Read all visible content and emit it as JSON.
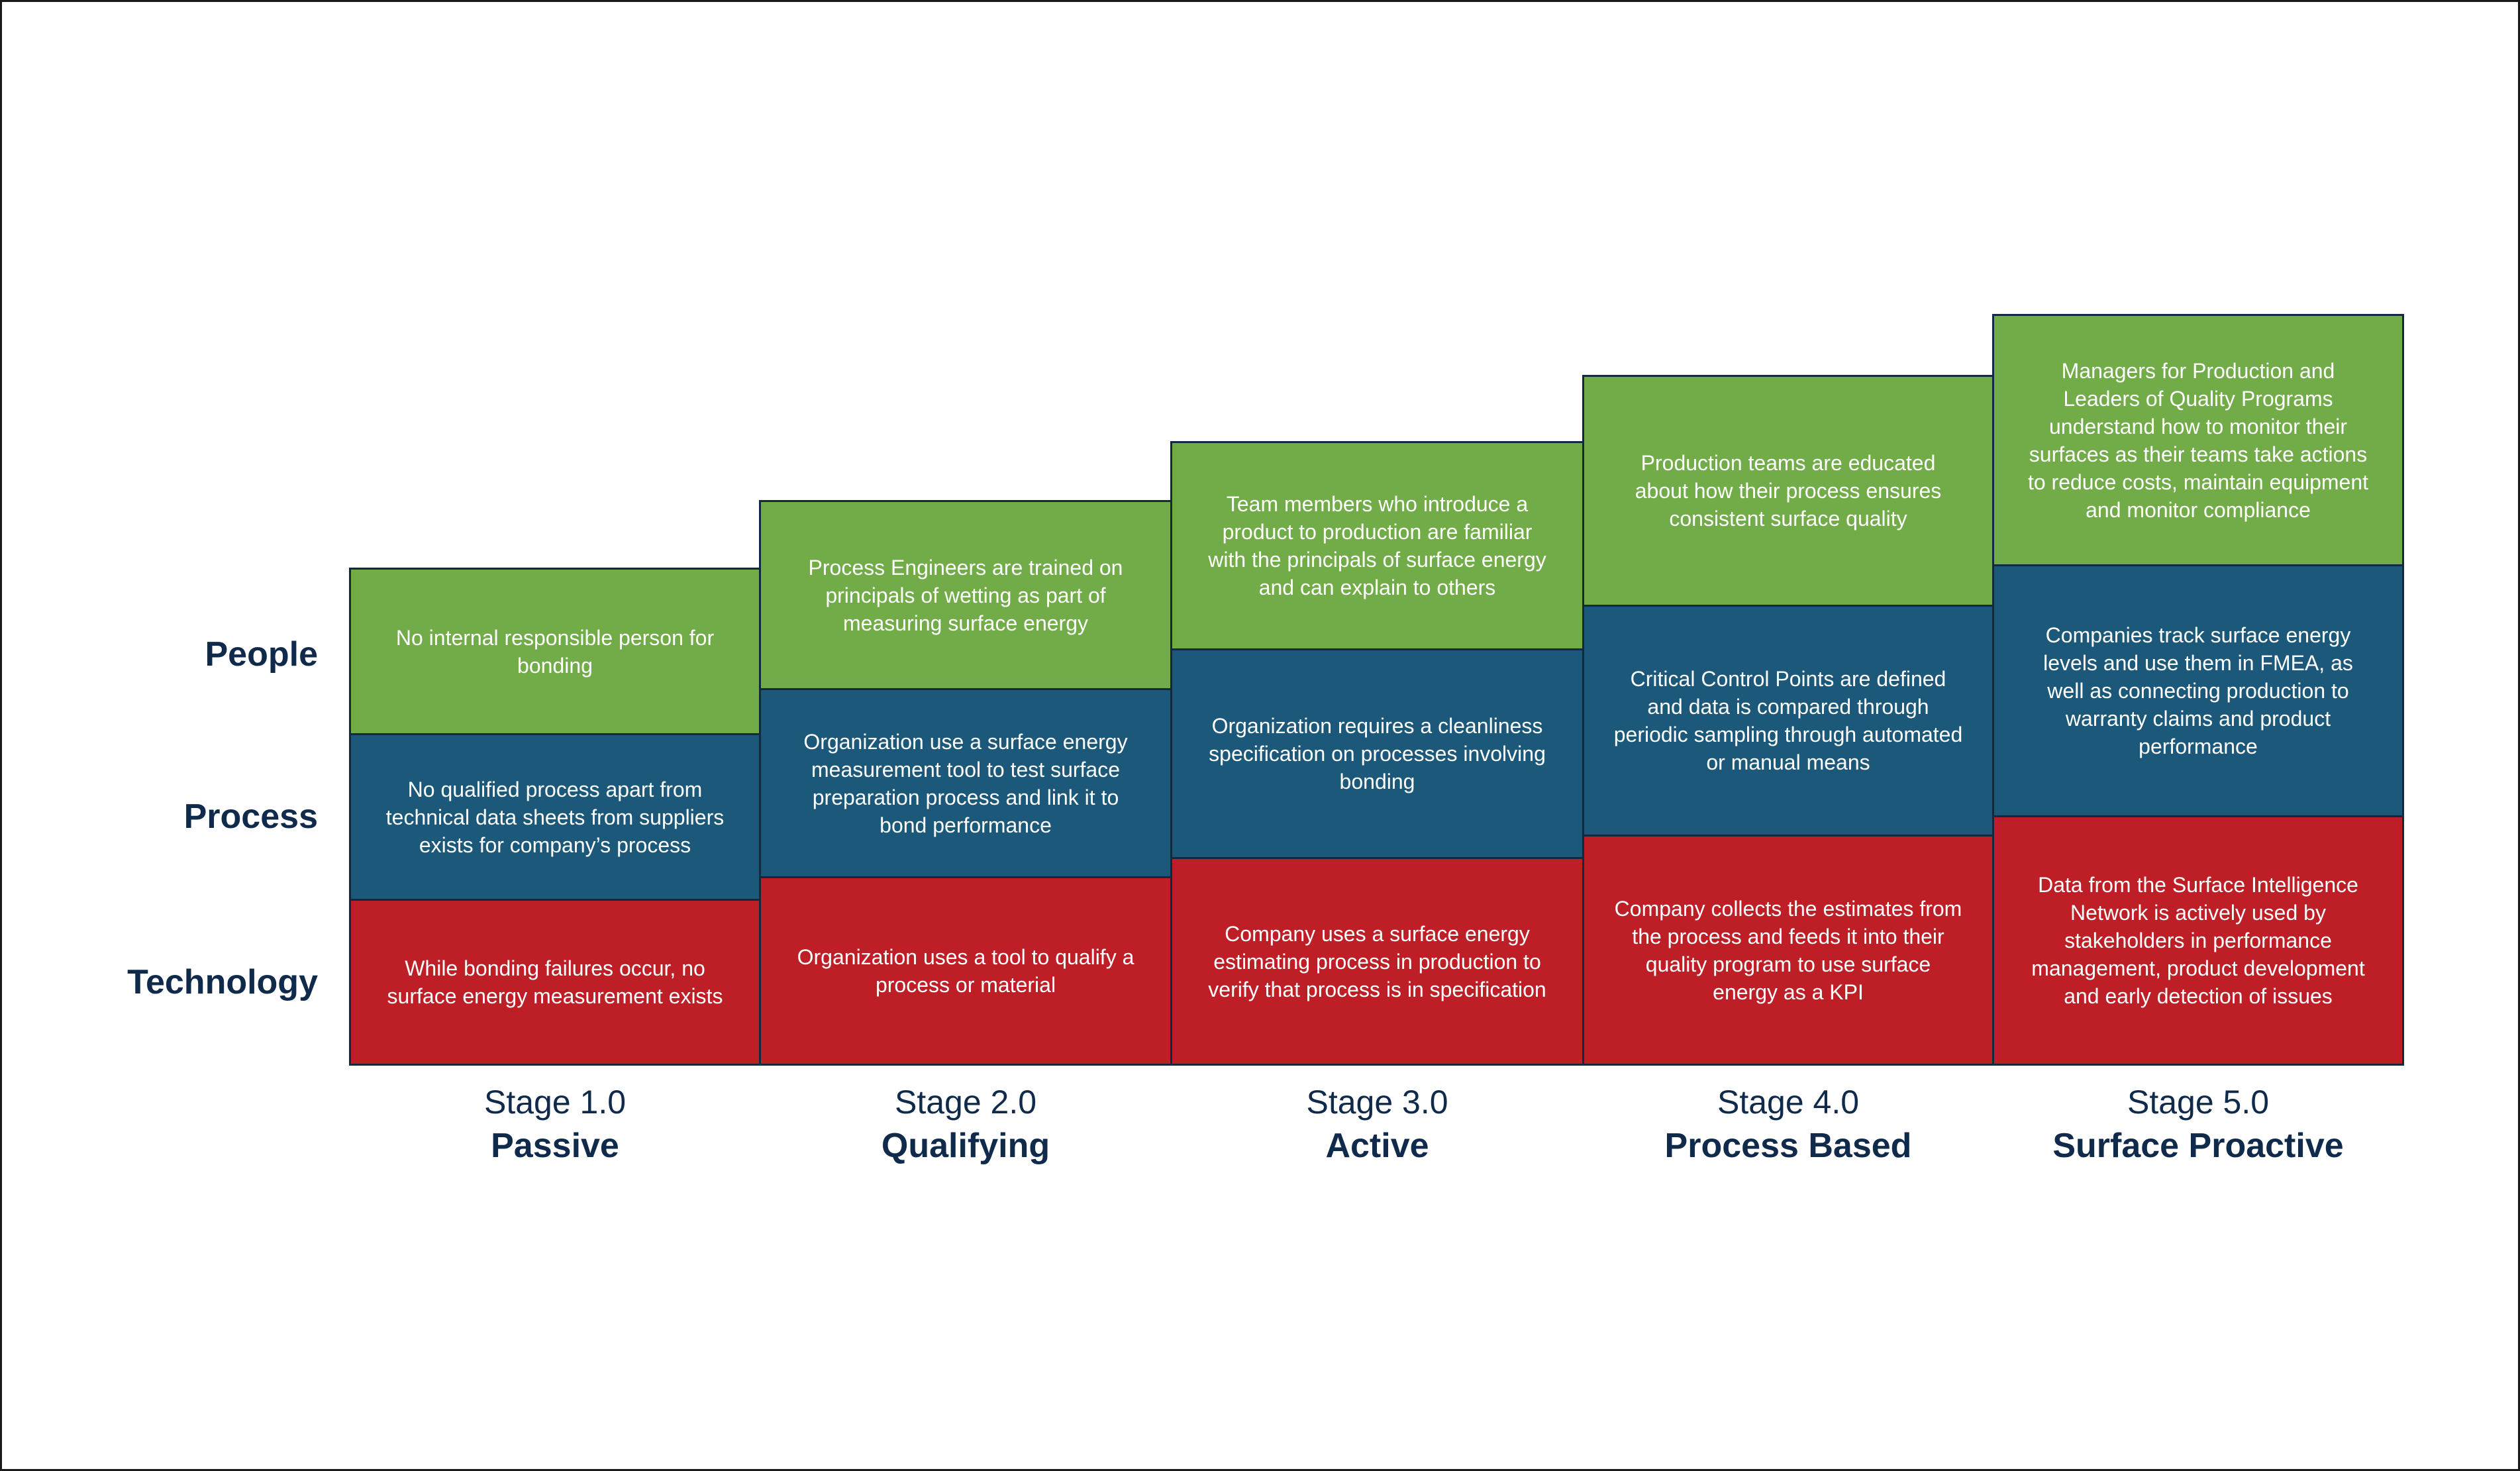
{
  "colors": {
    "people": "#72ac48",
    "process": "#1b5879",
    "technology": "#be1f27",
    "label_text": "#0f2a4a"
  },
  "row_labels": {
    "people": "People",
    "process": "Process",
    "technology": "Technology"
  },
  "stages": [
    {
      "number": "Stage 1.0",
      "name": "Passive",
      "people": "No internal responsible person for bonding",
      "process": "No qualified process apart from technical data sheets from suppliers exists for company’s process",
      "technology": "While bonding failures occur, no surface energy measurement exists"
    },
    {
      "number": "Stage 2.0",
      "name": "Qualifying",
      "people": "Process Engineers are trained on principals of wetting as part of measuring surface energy",
      "process": "Organization use a surface energy measurement tool to test surface preparation process and link it to bond performance",
      "technology": "Organization uses a tool to qualify a process or material"
    },
    {
      "number": "Stage 3.0",
      "name": "Active",
      "people": "Team members who introduce a product to production are familiar with the principals of surface energy and can explain to others",
      "process": "Organization requires a cleanliness specification on processes involving bonding",
      "technology": "Company uses a surface energy estimating process in production to verify that process is in specification"
    },
    {
      "number": "Stage 4.0",
      "name": "Process Based",
      "people": "Production teams are educated about how their process ensures consistent surface quality",
      "process": "Critical Control Points are defined and data is compared through periodic sampling through automated or manual means",
      "technology": "Company collects the estimates from the process and feeds it into their quality program to use surface energy as a KPI"
    },
    {
      "number": "Stage 5.0",
      "name": "Surface Proactive",
      "people": "Managers for Production and Leaders of Quality Programs understand how to monitor their surfaces as their teams take actions to reduce costs, maintain equipment and monitor compliance",
      "process": "Companies track surface energy levels and use them in FMEA, as well as connecting production to warranty claims and product performance",
      "technology": "Data from the Surface Intelligence Network is actively used by stakeholders in performance management, product development and early detection of issues"
    }
  ]
}
